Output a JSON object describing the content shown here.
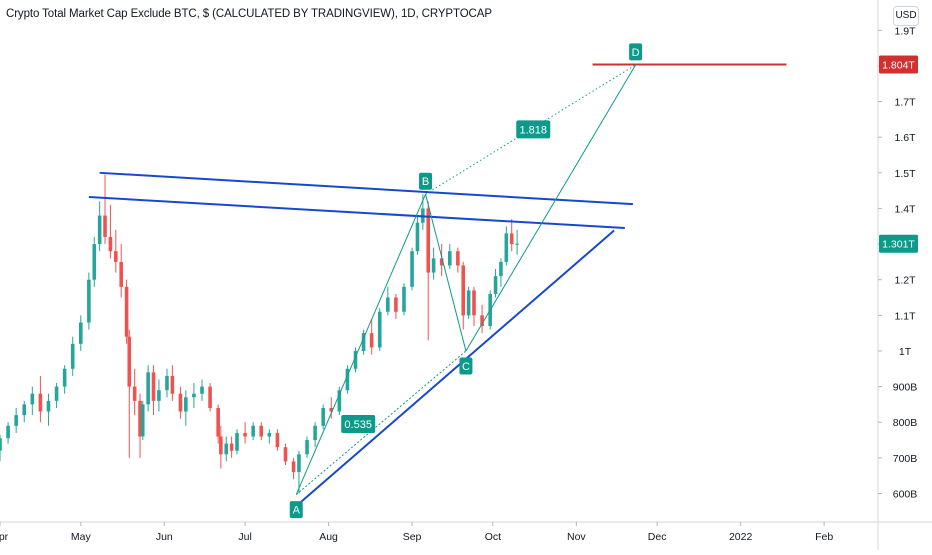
{
  "chart_data": {
    "type": "candlestick",
    "title": "Crypto Total Market Cap Exclude BTC, $ (CALCULATED BY TRADINGVIEW), 1D, CRYPTOCAP",
    "currency": "USD",
    "y_axis": {
      "scale": "linear",
      "ticks": [
        "1.9T",
        "1.8T",
        "1.7T",
        "1.6T",
        "1.5T",
        "1.4T",
        "1.3T",
        "1.2T",
        "1.1T",
        "1T",
        "900B",
        "800B",
        "700B",
        "600B"
      ],
      "tick_values": [
        1900,
        1800,
        1700,
        1600,
        1500,
        1400,
        1300,
        1200,
        1100,
        1000,
        900,
        800,
        700,
        600
      ],
      "unit": "billion USD",
      "range": [
        520,
        1985
      ]
    },
    "x_axis": {
      "labels": [
        "Apr",
        "May",
        "Jun",
        "Jul",
        "Aug",
        "Sep",
        "Oct",
        "Nov",
        "Dec",
        "2022",
        "Feb"
      ],
      "label_dates": [
        "2021-04-01",
        "2021-05-01",
        "2021-06-01",
        "2021-07-01",
        "2021-08-01",
        "2021-09-01",
        "2021-10-01",
        "2021-11-01",
        "2021-12-01",
        "2022-01-01",
        "2022-02-01"
      ],
      "range": [
        "2021-04-01",
        "2022-02-21"
      ]
    },
    "colors": {
      "up": "#26a69a",
      "down": "#ef5350",
      "trendline": "#1848cc",
      "pattern": "#0c9b8a",
      "target": "#d32f2f"
    },
    "price_marks": [
      {
        "label": "1.804T",
        "value": 1804,
        "color": "#d32f2f"
      },
      {
        "label": "1.301T",
        "value": 1301,
        "color": "#0c9b8a"
      }
    ],
    "target_line": {
      "value": 1804,
      "from": "2021-11-07",
      "to": "2022-01-18",
      "color": "#d32f2f"
    },
    "trendlines": [
      {
        "name": "upper-resistance",
        "from": [
          "2021-05-08",
          1500
        ],
        "to": [
          "2021-11-22",
          1412
        ]
      },
      {
        "name": "lower-resistance",
        "from": [
          "2021-05-04",
          1432
        ],
        "to": [
          "2021-11-19",
          1345
        ]
      },
      {
        "name": "rising-support",
        "from": [
          "2021-07-20",
          565
        ],
        "to": [
          "2021-11-15",
          1338
        ]
      }
    ],
    "pattern_points": [
      {
        "label": "A",
        "date": "2021-07-20",
        "value": 597,
        "label_position": "below"
      },
      {
        "label": "B",
        "date": "2021-09-06",
        "value": 1440,
        "label_position": "above"
      },
      {
        "label": "C",
        "date": "2021-09-21",
        "value": 1000,
        "label_position": "below"
      },
      {
        "label": "D",
        "date": "2021-11-23",
        "value": 1803,
        "label_position": "above"
      }
    ],
    "ratios": [
      {
        "label": "0.535",
        "date": "2021-08-12",
        "value": 795
      },
      {
        "label": "1.818",
        "date": "2021-10-16",
        "value": 1622
      }
    ],
    "projection_dotted": {
      "from": "B",
      "to": "D"
    },
    "projection_solid": {
      "from": "C",
      "to": "D"
    },
    "candles": [
      [
        "2021-04-01",
        720,
        765,
        690,
        755
      ],
      [
        "2021-04-04",
        755,
        800,
        740,
        790
      ],
      [
        "2021-04-07",
        790,
        840,
        770,
        820
      ],
      [
        "2021-04-10",
        820,
        860,
        800,
        850
      ],
      [
        "2021-04-13",
        850,
        900,
        820,
        880
      ],
      [
        "2021-04-16",
        880,
        930,
        800,
        830
      ],
      [
        "2021-04-19",
        830,
        880,
        790,
        860
      ],
      [
        "2021-04-22",
        860,
        910,
        840,
        900
      ],
      [
        "2021-04-25",
        900,
        960,
        880,
        950
      ],
      [
        "2021-04-28",
        950,
        1040,
        930,
        1020
      ],
      [
        "2021-05-01",
        1020,
        1100,
        1000,
        1080
      ],
      [
        "2021-05-04",
        1080,
        1220,
        1060,
        1200
      ],
      [
        "2021-05-06",
        1200,
        1320,
        1180,
        1300
      ],
      [
        "2021-05-08",
        1300,
        1420,
        1280,
        1380
      ],
      [
        "2021-05-10",
        1380,
        1495,
        1300,
        1320
      ],
      [
        "2021-05-12",
        1320,
        1410,
        1260,
        1280
      ],
      [
        "2021-05-14",
        1280,
        1340,
        1220,
        1250
      ],
      [
        "2021-05-16",
        1250,
        1300,
        1150,
        1180
      ],
      [
        "2021-05-18",
        1180,
        1200,
        1020,
        1040
      ],
      [
        "2021-05-19",
        1040,
        1060,
        700,
        900
      ],
      [
        "2021-05-21",
        900,
        950,
        820,
        860
      ],
      [
        "2021-05-23",
        860,
        880,
        700,
        760
      ],
      [
        "2021-05-24",
        760,
        860,
        750,
        850
      ],
      [
        "2021-05-26",
        850,
        960,
        830,
        940
      ],
      [
        "2021-05-28",
        940,
        960,
        820,
        860
      ],
      [
        "2021-05-30",
        860,
        920,
        830,
        890
      ],
      [
        "2021-06-02",
        890,
        950,
        870,
        930
      ],
      [
        "2021-06-04",
        930,
        960,
        860,
        880
      ],
      [
        "2021-06-07",
        880,
        900,
        810,
        830
      ],
      [
        "2021-06-09",
        830,
        890,
        790,
        870
      ],
      [
        "2021-06-12",
        870,
        910,
        840,
        880
      ],
      [
        "2021-06-15",
        880,
        920,
        860,
        900
      ],
      [
        "2021-06-18",
        900,
        910,
        830,
        840
      ],
      [
        "2021-06-21",
        840,
        850,
        740,
        760
      ],
      [
        "2021-06-22",
        760,
        790,
        670,
        710
      ],
      [
        "2021-06-24",
        710,
        760,
        690,
        740
      ],
      [
        "2021-06-26",
        740,
        760,
        700,
        720
      ],
      [
        "2021-06-28",
        720,
        780,
        710,
        770
      ],
      [
        "2021-07-01",
        770,
        800,
        740,
        760
      ],
      [
        "2021-07-04",
        760,
        800,
        750,
        790
      ],
      [
        "2021-07-07",
        790,
        800,
        750,
        760
      ],
      [
        "2021-07-10",
        760,
        780,
        740,
        770
      ],
      [
        "2021-07-13",
        770,
        780,
        720,
        730
      ],
      [
        "2021-07-16",
        730,
        740,
        680,
        690
      ],
      [
        "2021-07-19",
        690,
        700,
        640,
        660
      ],
      [
        "2021-07-21",
        660,
        720,
        600,
        710
      ],
      [
        "2021-07-24",
        710,
        760,
        700,
        750
      ],
      [
        "2021-07-27",
        750,
        800,
        730,
        790
      ],
      [
        "2021-07-30",
        790,
        850,
        780,
        840
      ],
      [
        "2021-08-02",
        840,
        870,
        810,
        830
      ],
      [
        "2021-08-05",
        830,
        900,
        820,
        890
      ],
      [
        "2021-08-08",
        890,
        960,
        880,
        950
      ],
      [
        "2021-08-11",
        950,
        1010,
        940,
        1000
      ],
      [
        "2021-08-14",
        1000,
        1060,
        990,
        1050
      ],
      [
        "2021-08-17",
        1050,
        1090,
        990,
        1010
      ],
      [
        "2021-08-20",
        1010,
        1120,
        1000,
        1110
      ],
      [
        "2021-08-23",
        1110,
        1180,
        1100,
        1150
      ],
      [
        "2021-08-26",
        1150,
        1160,
        1090,
        1110
      ],
      [
        "2021-08-29",
        1110,
        1190,
        1100,
        1180
      ],
      [
        "2021-09-01",
        1180,
        1290,
        1170,
        1280
      ],
      [
        "2021-09-03",
        1280,
        1380,
        1270,
        1360
      ],
      [
        "2021-09-05",
        1360,
        1440,
        1340,
        1400
      ],
      [
        "2021-09-07",
        1400,
        1420,
        1030,
        1220
      ],
      [
        "2021-09-09",
        1220,
        1290,
        1200,
        1260
      ],
      [
        "2021-09-12",
        1260,
        1300,
        1210,
        1240
      ],
      [
        "2021-09-15",
        1240,
        1300,
        1230,
        1280
      ],
      [
        "2021-09-18",
        1280,
        1290,
        1220,
        1240
      ],
      [
        "2021-09-20",
        1240,
        1250,
        1060,
        1100
      ],
      [
        "2021-09-22",
        1100,
        1180,
        1090,
        1170
      ],
      [
        "2021-09-24",
        1170,
        1180,
        1070,
        1100
      ],
      [
        "2021-09-27",
        1100,
        1130,
        1050,
        1070
      ],
      [
        "2021-09-30",
        1070,
        1170,
        1060,
        1160
      ],
      [
        "2021-10-02",
        1160,
        1230,
        1150,
        1210
      ],
      [
        "2021-10-04",
        1210,
        1260,
        1180,
        1250
      ],
      [
        "2021-10-06",
        1250,
        1350,
        1240,
        1330
      ],
      [
        "2021-10-08",
        1330,
        1370,
        1280,
        1300
      ],
      [
        "2021-10-10",
        1300,
        1340,
        1270,
        1301
      ]
    ]
  }
}
